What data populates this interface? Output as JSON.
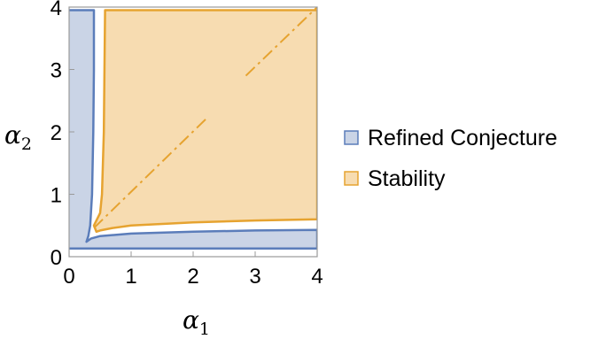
{
  "chart_data": {
    "type": "area",
    "xlabel": "α1",
    "ylabel": "α2",
    "xlabel_base": "α",
    "xlabel_sub": "1",
    "ylabel_base": "α",
    "ylabel_sub": "2",
    "xlim": [
      0,
      4
    ],
    "ylim": [
      0,
      4
    ],
    "xticks": [
      "0",
      "1",
      "2",
      "3",
      "4"
    ],
    "yticks": [
      "0",
      "1",
      "2",
      "3",
      "4"
    ],
    "grid": false,
    "legend_position": "right",
    "series": [
      {
        "name": "Refined Conjecture",
        "fill": "#cad4e6",
        "stroke": "#5b7dba",
        "points": [
          [
            -0.08,
            0.13
          ],
          [
            4.0,
            0.13
          ],
          [
            4.0,
            0.43
          ],
          [
            3.0,
            0.42
          ],
          [
            2.0,
            0.4
          ],
          [
            1.0,
            0.37
          ],
          [
            0.5,
            0.33
          ],
          [
            0.35,
            0.29
          ],
          [
            0.28,
            0.24
          ],
          [
            0.31,
            0.33
          ],
          [
            0.34,
            0.5
          ],
          [
            0.37,
            1.0
          ],
          [
            0.39,
            2.0
          ],
          [
            0.4,
            3.0
          ],
          [
            0.4,
            3.95
          ],
          [
            -0.08,
            3.95
          ]
        ]
      },
      {
        "name": "Stability",
        "fill": "#f7dcb1",
        "stroke": "#e6a330",
        "points": [
          [
            0.58,
            3.95
          ],
          [
            4.0,
            3.95
          ],
          [
            4.0,
            0.6
          ],
          [
            3.0,
            0.58
          ],
          [
            2.0,
            0.55
          ],
          [
            1.0,
            0.5
          ],
          [
            0.7,
            0.46
          ],
          [
            0.5,
            0.42
          ],
          [
            0.44,
            0.4
          ],
          [
            0.4,
            0.5
          ],
          [
            0.5,
            0.7
          ],
          [
            0.53,
            1.0
          ],
          [
            0.56,
            2.0
          ],
          [
            0.57,
            3.0
          ]
        ]
      }
    ],
    "annotations": [
      {
        "type": "dash-dot-line",
        "color": "#e6a330",
        "segments": [
          [
            [
              0.4,
              0.46
            ],
            [
              2.2,
              2.2
            ]
          ],
          [
            [
              2.85,
              2.9
            ],
            [
              4.0,
              4.0
            ]
          ]
        ]
      }
    ]
  }
}
